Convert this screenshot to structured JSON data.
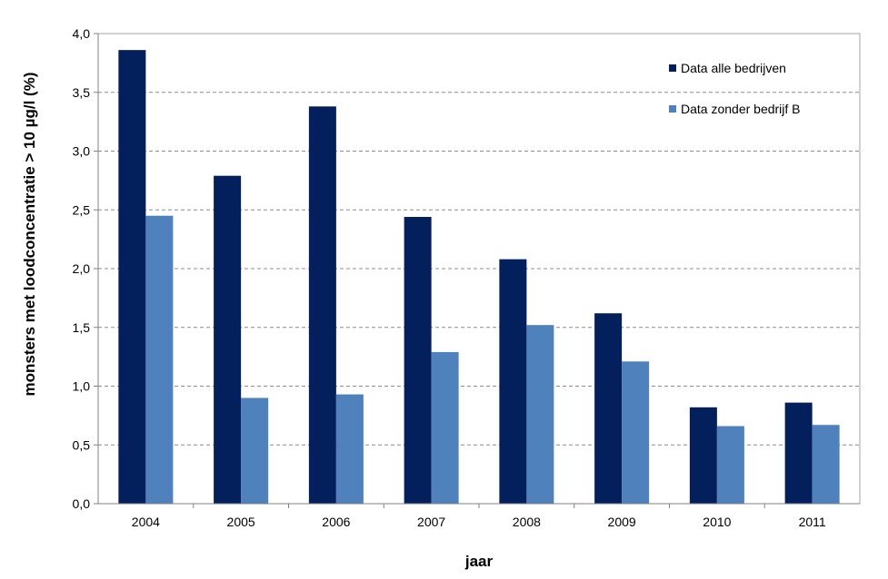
{
  "chart_data": {
    "type": "bar",
    "categories": [
      "2004",
      "2005",
      "2006",
      "2007",
      "2008",
      "2009",
      "2010",
      "2011"
    ],
    "series": [
      {
        "name": "Data alle bedrijven",
        "color": "#031f5c",
        "values": [
          3.86,
          2.79,
          3.38,
          2.44,
          2.08,
          1.62,
          0.82,
          0.86
        ]
      },
      {
        "name": "Data zonder bedrijf B",
        "color": "#4f81bd",
        "values": [
          2.45,
          0.9,
          0.93,
          1.29,
          1.52,
          1.21,
          0.66,
          0.67
        ]
      }
    ],
    "xlabel": "jaar",
    "ylabel": "monsters met loodconcentratie > 10 µg/l (%)",
    "ylim": [
      0,
      4.0
    ],
    "yticks": [
      "0,0",
      "0,5",
      "1,0",
      "1,5",
      "2,0",
      "2,5",
      "3,0",
      "3,5",
      "4,0"
    ],
    "grid": "horizontal dashed",
    "legend_position": "top-right"
  }
}
